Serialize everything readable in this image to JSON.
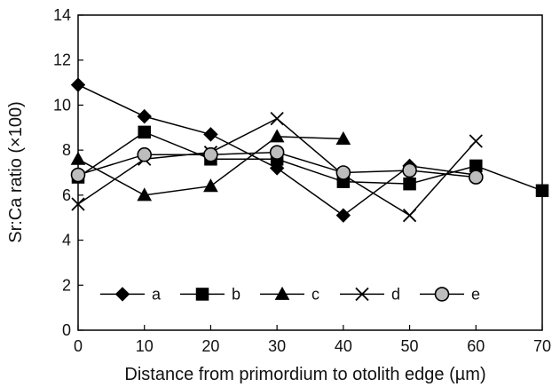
{
  "chart_data": {
    "type": "line",
    "title": "",
    "xlabel": "Distance from primordium to otolith edge (µm)",
    "ylabel": "Sr:Ca ratio (×100)",
    "xlim": [
      0,
      70
    ],
    "ylim": [
      0,
      14
    ],
    "xticks": [
      0,
      10,
      20,
      30,
      40,
      50,
      60,
      70
    ],
    "yticks": [
      0,
      2,
      4,
      6,
      8,
      10,
      12,
      14
    ],
    "grid": false,
    "legend_placement": "bottom-inside",
    "series": [
      {
        "name": "a",
        "marker": "diamond",
        "color": "#000000",
        "x": [
          0,
          10,
          20,
          30,
          40,
          50,
          60
        ],
        "y": [
          10.9,
          9.5,
          8.7,
          7.2,
          5.1,
          7.3,
          6.9
        ]
      },
      {
        "name": "b",
        "marker": "square",
        "color": "#000000",
        "x": [
          0,
          10,
          20,
          30,
          40,
          50,
          60,
          70
        ],
        "y": [
          6.8,
          8.8,
          7.6,
          7.6,
          6.6,
          6.5,
          7.3,
          6.2
        ]
      },
      {
        "name": "c",
        "marker": "triangle",
        "color": "#000000",
        "x": [
          0,
          10,
          20,
          30,
          40
        ],
        "y": [
          7.6,
          6.0,
          6.4,
          8.6,
          8.5
        ]
      },
      {
        "name": "d",
        "marker": "x",
        "color": "#000000",
        "x": [
          0,
          10,
          20,
          30,
          40,
          50,
          60
        ],
        "y": [
          5.6,
          7.6,
          7.9,
          9.4,
          6.9,
          5.1,
          8.4
        ]
      },
      {
        "name": "e",
        "marker": "circle",
        "color": "#000000",
        "marker_fill": "#bdbdbd",
        "x": [
          0,
          10,
          20,
          30,
          40,
          50,
          60
        ],
        "y": [
          6.9,
          7.8,
          7.8,
          7.9,
          7.0,
          7.1,
          6.8
        ]
      }
    ]
  }
}
